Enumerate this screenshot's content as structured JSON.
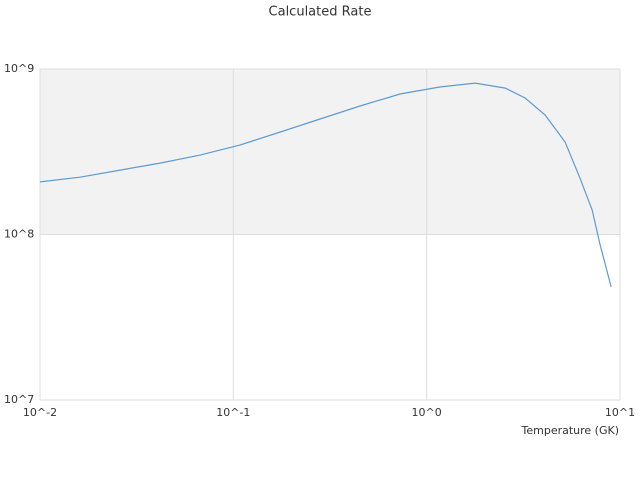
{
  "chart_data": {
    "type": "line",
    "title": "Calculated Rate",
    "x_label": "Temperature (GK)",
    "x": [
      0.01,
      0.0161,
      0.026,
      0.0418,
      0.0673,
      0.108,
      0.175,
      0.281,
      0.452,
      0.728,
      1.17,
      1.78,
      2.55,
      3.23,
      4.1,
      5.2,
      6.21,
      7.17,
      7.89,
      9.0
    ],
    "values": [
      208000000,
      222000000,
      245000000,
      270000000,
      302000000,
      347000000,
      416000000,
      499000000,
      598000000,
      706000000,
      778000000,
      822000000,
      767000000,
      668000000,
      527000000,
      362000000,
      219000000,
      141000000,
      86500000,
      48200000
    ],
    "color": "#5b9bd5",
    "x_log": true,
    "y_log": true,
    "xlim": [
      0.01,
      10
    ],
    "ylim": [
      10000000,
      1000000000
    ],
    "xticks": [
      {
        "value": 0.01,
        "label": "10^-2"
      },
      {
        "value": 0.1,
        "label": "10^-1"
      },
      {
        "value": 1,
        "label": "10^0"
      },
      {
        "value": 10,
        "label": "10^1"
      }
    ],
    "yticks": [
      {
        "value": 10000000,
        "label": "10^7"
      },
      {
        "value": 100000000,
        "label": "10^8"
      },
      {
        "value": 1000000000,
        "label": "10^9"
      }
    ],
    "grid": true,
    "band_color": "#f2f2f2"
  }
}
